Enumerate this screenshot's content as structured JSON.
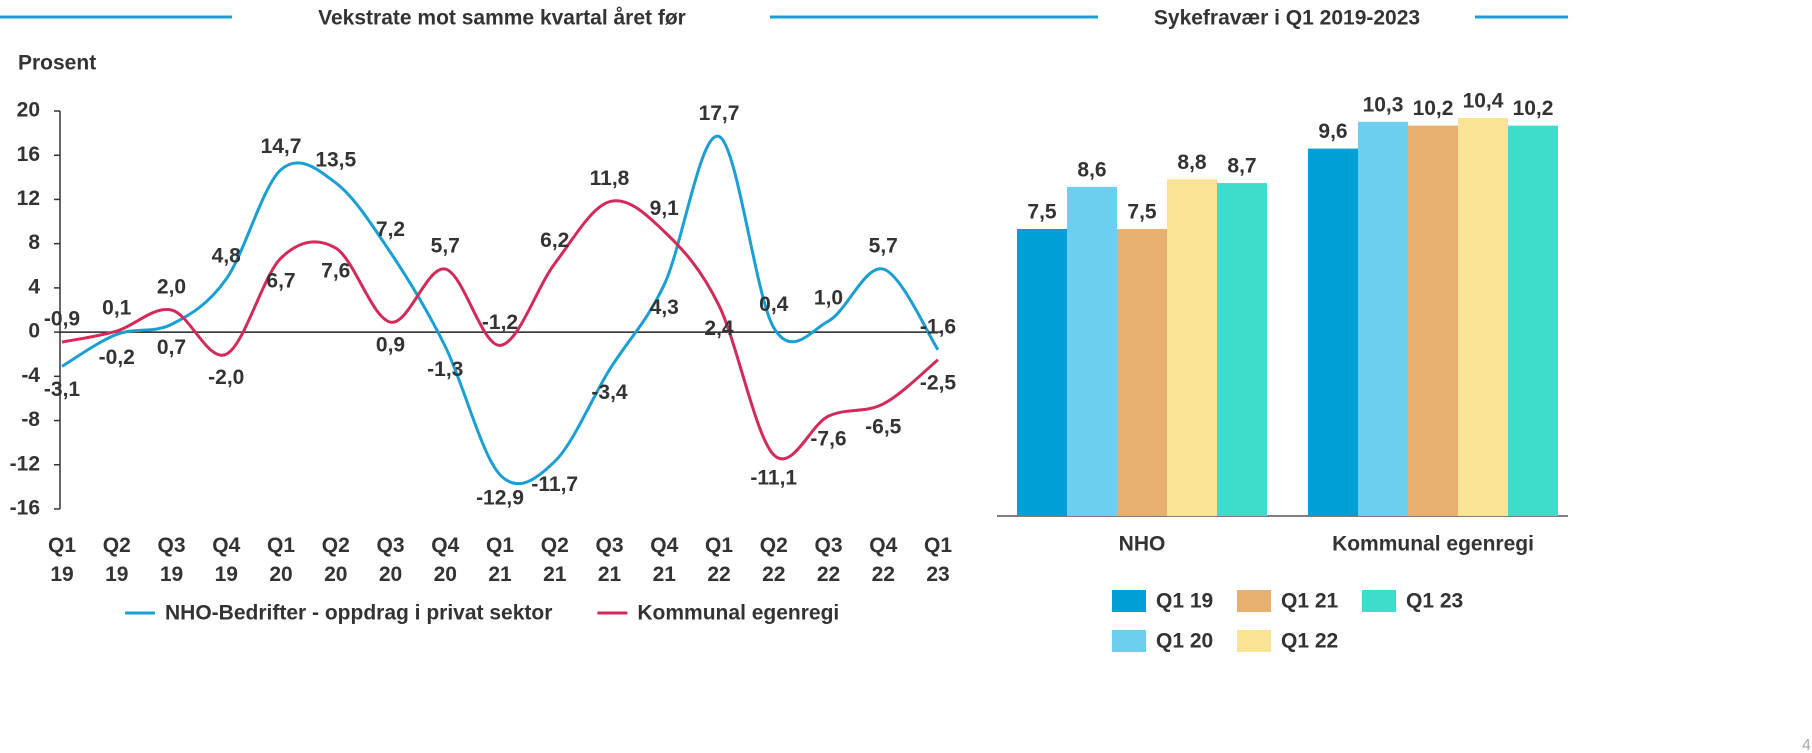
{
  "chart_data": [
    {
      "type": "line",
      "title": "Vekstrate mot samme kvartal året før",
      "y_label": "Prosent",
      "categories": [
        "Q1 19",
        "Q2 19",
        "Q3 19",
        "Q4 19",
        "Q1 20",
        "Q2 20",
        "Q3 20",
        "Q4 20",
        "Q1 21",
        "Q2 21",
        "Q3 21",
        "Q4 21",
        "Q1 22",
        "Q2 22",
        "Q3 22",
        "Q4 22",
        "Q1 23"
      ],
      "series": [
        {
          "name": "NHO-Bedrifter - oppdrag i privat sektor",
          "color": "#1a9fd4",
          "values": [
            -3.1,
            -0.2,
            0.7,
            4.8,
            14.7,
            13.5,
            7.2,
            -1.3,
            -12.9,
            -11.7,
            -3.4,
            4.3,
            17.7,
            0.4,
            1,
            5.7,
            -1.6
          ],
          "value_labels": [
            "-3,1",
            "-0,2",
            "0,7",
            "4,8",
            "14,7",
            "13,5",
            "7,2",
            "-1,3",
            "-12,9",
            "-11,7",
            "-3,4",
            "4,3",
            "17,7",
            "0,4",
            "1,0",
            "5,7",
            "-1,6"
          ]
        },
        {
          "name": "Kommunal egenregi",
          "color": "#d42a5a",
          "values": [
            -0.9,
            0.1,
            2,
            -2,
            6.7,
            7.6,
            0.9,
            5.7,
            -1.2,
            6.2,
            11.8,
            9.1,
            2.4,
            -11.1,
            -7.6,
            -6.5,
            -2.5
          ],
          "value_labels": [
            "-0,9",
            "0,1",
            "2,0",
            "-2,0",
            "6,7",
            "7,6",
            "0,9",
            "5,7",
            "-1,2",
            "6,2",
            "11,8",
            "9,1",
            "2,4",
            "-11,1",
            "-7,6",
            "-6,5",
            "-2,5"
          ]
        }
      ],
      "ylim": [
        -16,
        20
      ],
      "yticks": [
        -16,
        -12,
        -8,
        -4,
        0,
        4,
        8,
        12,
        16,
        20
      ],
      "legend": "bottom"
    },
    {
      "type": "bar",
      "title": "Sykefravær i Q1 2019-2023",
      "categories": [
        "NHO",
        "Kommunal egenregi"
      ],
      "series": [
        {
          "name": "Q1 19",
          "color": "#009fd6",
          "values": [
            7.5,
            9.6
          ],
          "value_labels": [
            "7,5",
            "9,6"
          ]
        },
        {
          "name": "Q1 20",
          "color": "#6dcff0",
          "values": [
            8.6,
            10.3
          ],
          "value_labels": [
            "8,6",
            "10,3"
          ]
        },
        {
          "name": "Q1 21",
          "color": "#e8b070",
          "values": [
            7.5,
            10.2
          ],
          "value_labels": [
            "7,5",
            "10,2"
          ]
        },
        {
          "name": "Q1 22",
          "color": "#fae396",
          "values": [
            8.8,
            10.4
          ],
          "value_labels": [
            "8,8",
            "10,4"
          ]
        },
        {
          "name": "Q1 23",
          "color": "#3ddccb",
          "values": [
            8.7,
            10.2
          ],
          "value_labels": [
            "8,7",
            "10,2"
          ]
        }
      ],
      "legend": "bottom"
    }
  ],
  "page_number": "4"
}
